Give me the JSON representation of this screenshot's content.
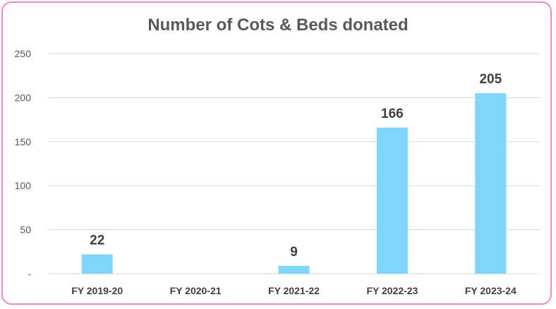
{
  "chart_data": {
    "type": "bar",
    "title": "Number of Cots & Beds donated",
    "categories": [
      "FY 2019-20",
      "FY 2020-21",
      "FY 2021-22",
      "FY 2022-23",
      "FY 2023-24"
    ],
    "values": [
      22,
      0,
      9,
      166,
      205
    ],
    "data_labels": [
      "22",
      "",
      "9",
      "166",
      "205"
    ],
    "y_ticks": [
      {
        "value": 0,
        "label": "-"
      },
      {
        "value": 50,
        "label": "50"
      },
      {
        "value": 100,
        "label": "100"
      },
      {
        "value": 150,
        "label": "150"
      },
      {
        "value": 200,
        "label": "200"
      },
      {
        "value": 250,
        "label": "250"
      }
    ],
    "ylim": [
      0,
      250
    ],
    "grid": true,
    "legend": "none",
    "colors": {
      "bar": "#7fd6fb",
      "border": "#f08ad0",
      "grid": "#d9d9d9"
    }
  }
}
